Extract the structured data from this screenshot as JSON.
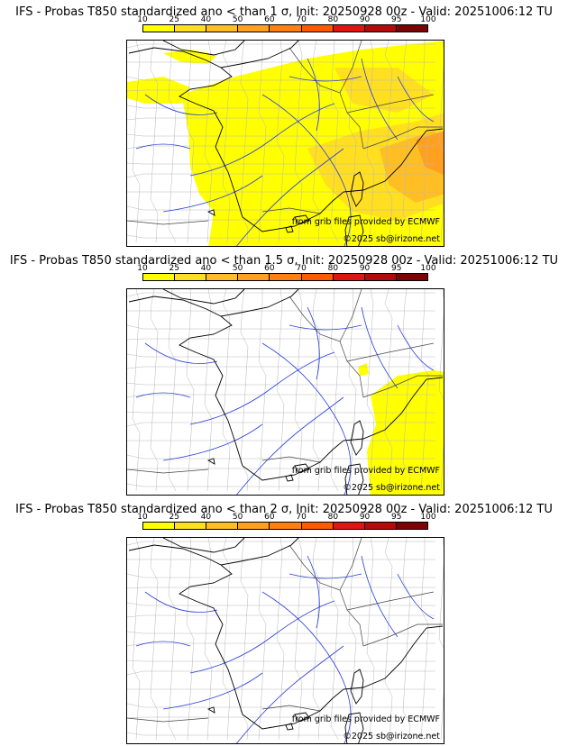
{
  "colorbar": {
    "ticks": [
      "10",
      "25",
      "40",
      "50",
      "60",
      "70",
      "80",
      "90",
      "95",
      "100"
    ],
    "colors": [
      "#ffff00",
      "#ffdf1f",
      "#ffbf24",
      "#ffa020",
      "#ff8010",
      "#ff5a00",
      "#e11414",
      "#b40a0a",
      "#7c0404"
    ]
  },
  "credits": {
    "source": "from grib files provided by ECMWF",
    "copyright": "©2025 sb@irizone.net"
  },
  "panels": [
    {
      "title": "IFS - Probas T850  standardized ano < than 1 σ, Init: 20250928 00z - Valid: 20251006:12 TU",
      "coverage": "high"
    },
    {
      "title": "IFS - Probas T850  standardized ano < than 1.5 σ, Init: 20250928 00z - Valid: 20251006:12 TU",
      "coverage": "partial"
    },
    {
      "title": "IFS - Probas T850  standardized ano < than 2 σ, Init: 20250928 00z - Valid: 20251006:12 TU",
      "coverage": "none"
    }
  ]
}
